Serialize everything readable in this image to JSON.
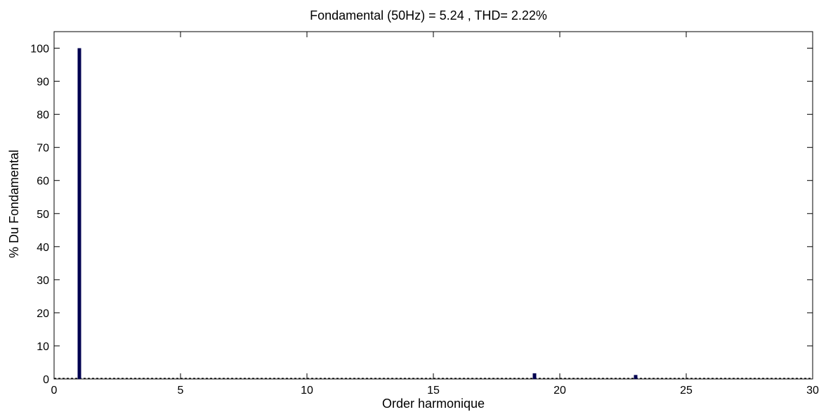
{
  "chart_data": {
    "type": "bar",
    "title": "Fondamental (50Hz) = 5.24 , THD= 2.22%",
    "xlabel": "Order harmonique",
    "ylabel": "% Du Fondamental",
    "xlim": [
      0,
      30
    ],
    "ylim": [
      0,
      105
    ],
    "xticks": [
      0,
      5,
      10,
      15,
      20,
      25,
      30
    ],
    "yticks": [
      0,
      10,
      20,
      30,
      40,
      50,
      60,
      70,
      80,
      90,
      100
    ],
    "grid": false,
    "bar_color": "#000050",
    "x": [
      1,
      19,
      23
    ],
    "values": [
      100,
      1.7,
      1.2
    ]
  }
}
